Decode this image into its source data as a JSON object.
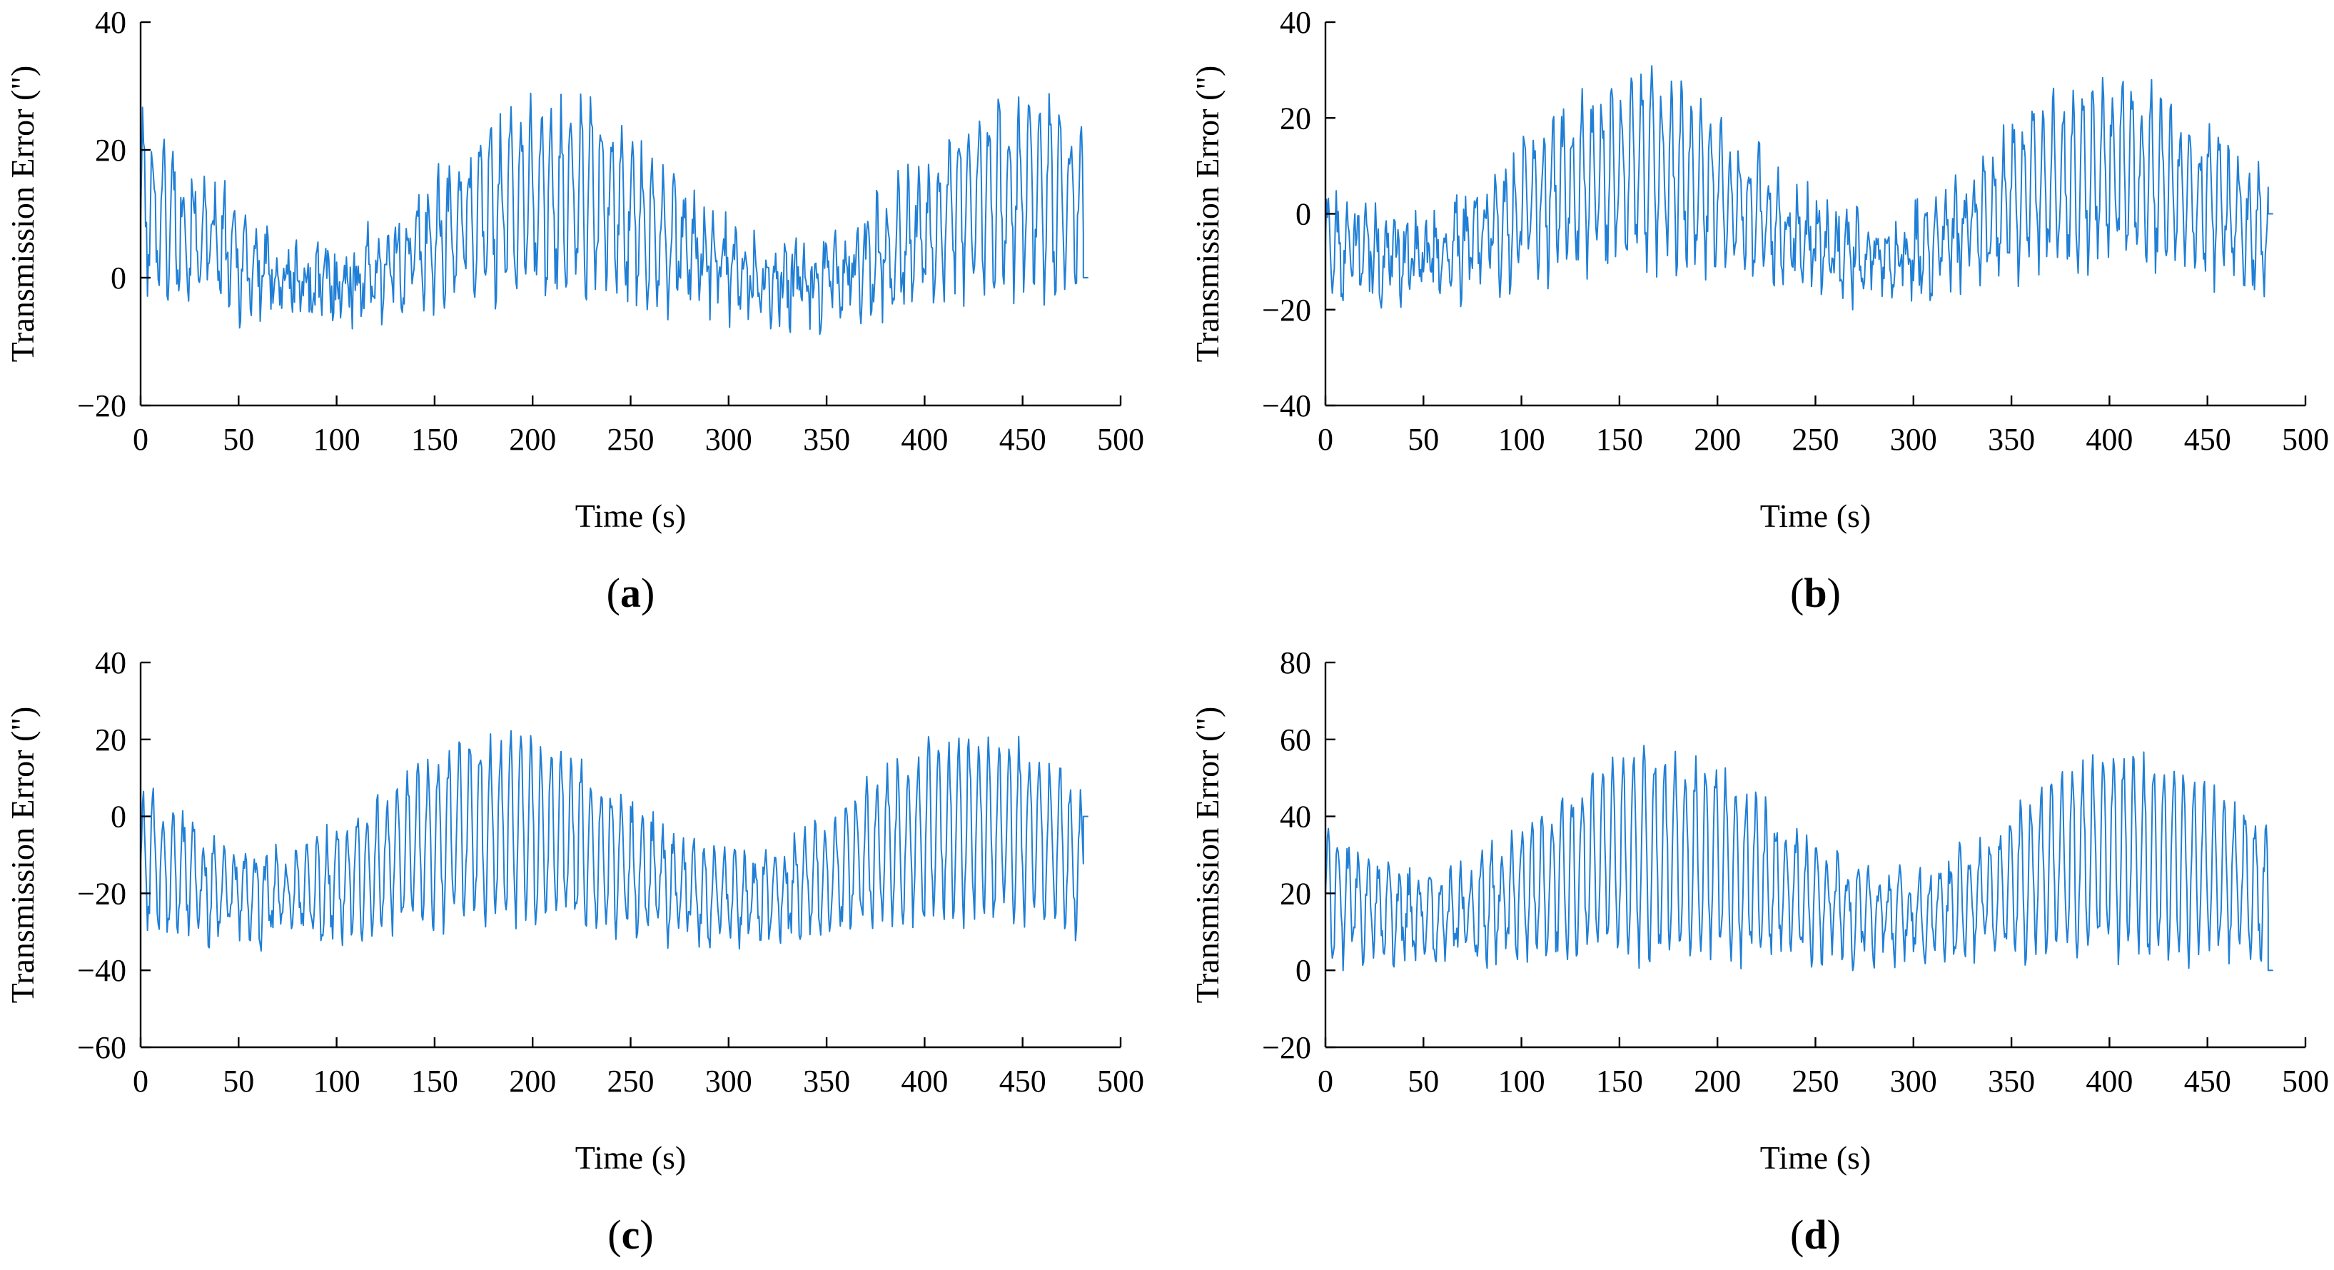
{
  "chart_data": [
    {
      "type": "line",
      "panel_label": "a",
      "xlabel": "Time (s)",
      "ylabel": "Transmission Error  (\")",
      "xlim": [
        0,
        500
      ],
      "ylim": [
        -20,
        40
      ],
      "xticks": [
        0,
        50,
        100,
        150,
        200,
        250,
        300,
        350,
        400,
        450,
        500
      ],
      "yticks": [
        -20,
        0,
        20,
        40
      ],
      "xtick_labels": [
        "0",
        "50",
        "100",
        "150",
        "200",
        "250",
        "300",
        "350",
        "400",
        "450",
        "500"
      ],
      "ytick_labels": [
        "−20",
        "0",
        "20",
        "40"
      ],
      "series": [
        {
          "name": "transmission error",
          "color": "#1f7fd6",
          "duration": 481,
          "signal": {
            "offset": 6,
            "slow_amplitude": 7,
            "slow_period": 240,
            "slow_phase": 212,
            "osc_period": 5.2,
            "osc_amplitude": 8,
            "osc_growth": 0.6,
            "noise": 5,
            "end_value": 0
          }
        }
      ]
    },
    {
      "type": "line",
      "panel_label": "b",
      "xlabel": "Time (s)",
      "ylabel": "Transmission Error  (\")",
      "xlim": [
        0,
        500
      ],
      "ylim": [
        -40,
        40
      ],
      "xticks": [
        0,
        50,
        100,
        150,
        200,
        250,
        300,
        350,
        400,
        450,
        500
      ],
      "yticks": [
        -40,
        -20,
        0,
        20,
        40
      ],
      "xtick_labels": [
        "0",
        "50",
        "100",
        "150",
        "200",
        "250",
        "300",
        "350",
        "400",
        "450",
        "500"
      ],
      "ytick_labels": [
        "−40",
        "−20",
        "0",
        "20",
        "40"
      ],
      "series": [
        {
          "name": "transmission error",
          "color": "#1f7fd6",
          "duration": 481,
          "signal": {
            "offset": 0,
            "slow_amplitude": 9,
            "slow_period": 240,
            "slow_phase": 160,
            "osc_period": 5.0,
            "osc_amplitude": 11,
            "osc_growth": 0.5,
            "noise": 6,
            "end_value": 0
          }
        }
      ]
    },
    {
      "type": "line",
      "panel_label": "c",
      "xlabel": "Time (s)",
      "ylabel": "Transmission Error  (\")",
      "xlim": [
        0,
        500
      ],
      "ylim": [
        -60,
        40
      ],
      "xticks": [
        0,
        50,
        100,
        150,
        200,
        250,
        300,
        350,
        400,
        450,
        500
      ],
      "yticks": [
        -60,
        -40,
        -20,
        0,
        20,
        40
      ],
      "xtick_labels": [
        "0",
        "50",
        "100",
        "150",
        "200",
        "250",
        "300",
        "350",
        "400",
        "450",
        "500"
      ],
      "ytick_labels": [
        "−60",
        "−40",
        "−20",
        "0",
        "20",
        "40"
      ],
      "series": [
        {
          "name": "transmission error",
          "color": "#1f7fd6",
          "duration": 481,
          "signal": {
            "offset": -12,
            "slow_amplitude": 9,
            "slow_period": 240,
            "slow_phase": 185,
            "osc_period": 5.2,
            "osc_amplitude": 16,
            "osc_growth": 0.4,
            "noise": 5,
            "end_value": 0
          }
        }
      ]
    },
    {
      "type": "line",
      "panel_label": "d",
      "xlabel": "Time (s)",
      "ylabel": "Transmission Error  (\")",
      "xlim": [
        0,
        500
      ],
      "ylim": [
        -20,
        80
      ],
      "xticks": [
        0,
        50,
        100,
        150,
        200,
        250,
        300,
        350,
        400,
        450,
        500
      ],
      "yticks": [
        -20,
        0,
        20,
        40,
        60,
        80
      ],
      "xtick_labels": [
        "0",
        "50",
        "100",
        "150",
        "200",
        "250",
        "300",
        "350",
        "400",
        "450",
        "500"
      ],
      "ytick_labels": [
        "−20",
        "0",
        "20",
        "40",
        "60",
        "80"
      ],
      "series": [
        {
          "name": "transmission error",
          "color": "#1f7fd6",
          "duration": 481,
          "signal": {
            "offset": 22,
            "slow_amplitude": 8,
            "slow_period": 240,
            "slow_phase": 170,
            "osc_period": 5.2,
            "osc_amplitude": 17,
            "osc_growth": 0.45,
            "noise": 5,
            "end_value": 0
          }
        }
      ]
    }
  ]
}
